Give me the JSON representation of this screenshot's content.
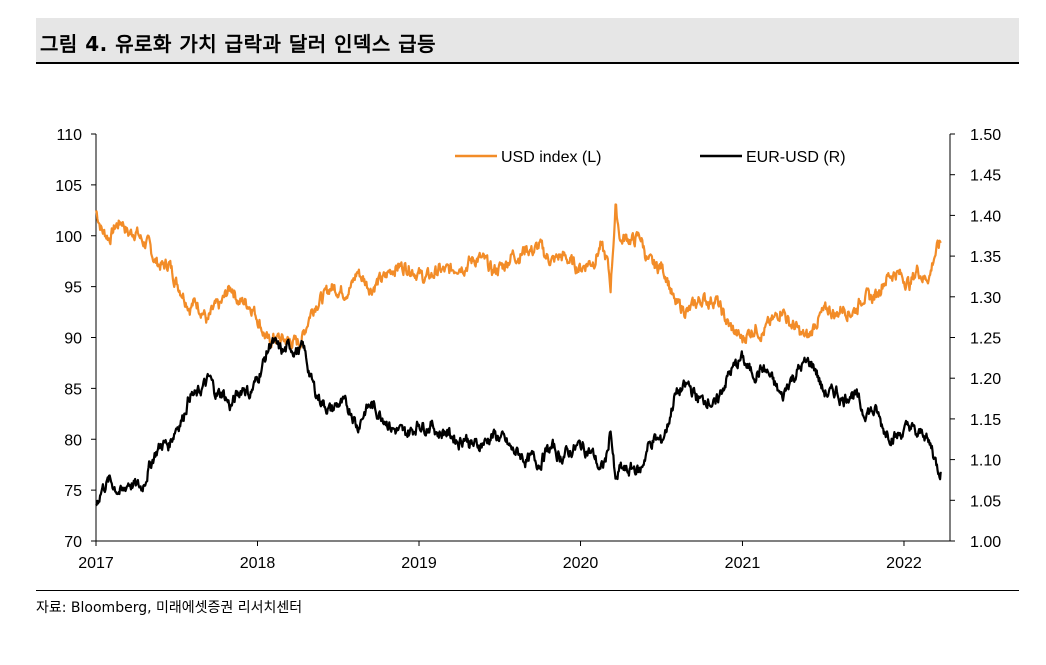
{
  "header": {
    "title": "그림 4. 유로화 가치 급락과 달러 인덱스 급등"
  },
  "footer": {
    "source": "자료: Bloomberg, 미래에셋증권 리서치센터"
  },
  "colors": {
    "usd": "#f28c28",
    "eur": "#000000"
  },
  "chart_data": {
    "type": "line",
    "title": "",
    "legend_position": "top",
    "grid": false,
    "x_ticks": [
      "2017",
      "2018",
      "2019",
      "2020",
      "2021",
      "2022"
    ],
    "xlim": [
      "2017-01-01",
      "2022-04-15"
    ],
    "y_left": {
      "label": "",
      "lim": [
        70,
        110
      ],
      "ticks": [
        "70",
        "75",
        "80",
        "85",
        "90",
        "95",
        "100",
        "105",
        "110"
      ]
    },
    "y_right": {
      "label": "",
      "lim": [
        1.0,
        1.5
      ],
      "ticks": [
        "1.00",
        "1.05",
        "1.10",
        "1.15",
        "1.20",
        "1.25",
        "1.30",
        "1.35",
        "1.40",
        "1.45",
        "1.50"
      ]
    },
    "series": [
      {
        "name": "USD index (L)",
        "axis": "left",
        "color": "#f28c28",
        "points": [
          [
            "2017-01-01",
            102.5
          ],
          [
            "2017-01-15",
            100.5
          ],
          [
            "2017-02-01",
            99.8
          ],
          [
            "2017-02-15",
            101.0
          ],
          [
            "2017-03-01",
            101.5
          ],
          [
            "2017-03-15",
            100.2
          ],
          [
            "2017-04-01",
            100.5
          ],
          [
            "2017-04-15",
            99.5
          ],
          [
            "2017-05-01",
            99.0
          ],
          [
            "2017-05-15",
            97.5
          ],
          [
            "2017-06-01",
            97.0
          ],
          [
            "2017-06-15",
            97.3
          ],
          [
            "2017-07-01",
            95.5
          ],
          [
            "2017-07-15",
            94.5
          ],
          [
            "2017-08-01",
            93.0
          ],
          [
            "2017-08-15",
            93.5
          ],
          [
            "2017-09-01",
            92.5
          ],
          [
            "2017-09-10",
            91.5
          ],
          [
            "2017-09-25",
            92.8
          ],
          [
            "2017-10-10",
            93.2
          ],
          [
            "2017-10-25",
            94.5
          ],
          [
            "2017-11-05",
            95.0
          ],
          [
            "2017-11-20",
            93.5
          ],
          [
            "2017-12-05",
            93.5
          ],
          [
            "2017-12-20",
            93.0
          ],
          [
            "2018-01-01",
            92.0
          ],
          [
            "2018-01-10",
            91.0
          ],
          [
            "2018-01-25",
            89.5
          ],
          [
            "2018-02-10",
            90.0
          ],
          [
            "2018-02-25",
            89.8
          ],
          [
            "2018-03-10",
            89.7
          ],
          [
            "2018-03-25",
            89.5
          ],
          [
            "2018-04-10",
            89.7
          ],
          [
            "2018-04-20",
            91.0
          ],
          [
            "2018-05-01",
            92.5
          ],
          [
            "2018-05-15",
            93.5
          ],
          [
            "2018-06-01",
            94.0
          ],
          [
            "2018-06-15",
            95.0
          ],
          [
            "2018-07-01",
            94.8
          ],
          [
            "2018-07-15",
            94.5
          ],
          [
            "2018-08-01",
            95.0
          ],
          [
            "2018-08-15",
            96.5
          ],
          [
            "2018-09-01",
            95.5
          ],
          [
            "2018-09-15",
            94.8
          ],
          [
            "2018-10-01",
            95.5
          ],
          [
            "2018-10-15",
            95.8
          ],
          [
            "2018-11-01",
            96.8
          ],
          [
            "2018-11-15",
            97.0
          ],
          [
            "2018-12-01",
            97.0
          ],
          [
            "2018-12-15",
            96.8
          ],
          [
            "2019-01-01",
            96.2
          ],
          [
            "2019-01-15",
            95.8
          ],
          [
            "2019-02-01",
            96.2
          ],
          [
            "2019-02-15",
            96.6
          ],
          [
            "2019-03-01",
            96.5
          ],
          [
            "2019-03-15",
            96.6
          ],
          [
            "2019-04-01",
            97.2
          ],
          [
            "2019-04-15",
            97.0
          ],
          [
            "2019-05-01",
            97.6
          ],
          [
            "2019-05-15",
            97.8
          ],
          [
            "2019-06-01",
            97.4
          ],
          [
            "2019-06-15",
            96.5
          ],
          [
            "2019-07-01",
            96.8
          ],
          [
            "2019-07-15",
            97.2
          ],
          [
            "2019-08-01",
            98.2
          ],
          [
            "2019-08-15",
            98.0
          ],
          [
            "2019-09-01",
            98.8
          ],
          [
            "2019-09-15",
            98.5
          ],
          [
            "2019-10-01",
            99.0
          ],
          [
            "2019-10-15",
            98.0
          ],
          [
            "2019-11-01",
            97.5
          ],
          [
            "2019-11-15",
            98.0
          ],
          [
            "2019-12-01",
            97.8
          ],
          [
            "2019-12-15",
            97.2
          ],
          [
            "2020-01-01",
            96.8
          ],
          [
            "2020-01-15",
            97.3
          ],
          [
            "2020-02-01",
            97.6
          ],
          [
            "2020-02-15",
            99.0
          ],
          [
            "2020-03-01",
            97.5
          ],
          [
            "2020-03-09",
            95.0
          ],
          [
            "2020-03-20",
            102.8
          ],
          [
            "2020-04-01",
            99.5
          ],
          [
            "2020-04-15",
            99.8
          ],
          [
            "2020-05-01",
            99.5
          ],
          [
            "2020-05-15",
            100.0
          ],
          [
            "2020-06-01",
            97.5
          ],
          [
            "2020-06-15",
            97.0
          ],
          [
            "2020-07-01",
            97.0
          ],
          [
            "2020-07-15",
            96.0
          ],
          [
            "2020-08-01",
            93.2
          ],
          [
            "2020-08-15",
            93.0
          ],
          [
            "2020-09-01",
            92.5
          ],
          [
            "2020-09-15",
            93.2
          ],
          [
            "2020-10-01",
            93.8
          ],
          [
            "2020-10-15",
            93.6
          ],
          [
            "2020-11-01",
            93.8
          ],
          [
            "2020-11-15",
            92.5
          ],
          [
            "2020-12-01",
            91.2
          ],
          [
            "2020-12-15",
            90.5
          ],
          [
            "2021-01-01",
            89.8
          ],
          [
            "2021-01-15",
            90.5
          ],
          [
            "2021-02-01",
            91.0
          ],
          [
            "2021-02-15",
            90.4
          ],
          [
            "2021-03-01",
            91.2
          ],
          [
            "2021-03-15",
            91.8
          ],
          [
            "2021-04-01",
            93.0
          ],
          [
            "2021-04-15",
            91.5
          ],
          [
            "2021-05-01",
            91.0
          ],
          [
            "2021-05-15",
            90.2
          ],
          [
            "2021-06-01",
            90.0
          ],
          [
            "2021-06-15",
            91.5
          ],
          [
            "2021-07-01",
            92.3
          ],
          [
            "2021-07-15",
            92.8
          ],
          [
            "2021-08-01",
            92.2
          ],
          [
            "2021-08-15",
            93.0
          ],
          [
            "2021-09-01",
            92.5
          ],
          [
            "2021-09-15",
            92.8
          ],
          [
            "2021-10-01",
            94.2
          ],
          [
            "2021-10-15",
            93.8
          ],
          [
            "2021-11-01",
            94.2
          ],
          [
            "2021-11-15",
            95.5
          ],
          [
            "2021-12-01",
            96.2
          ],
          [
            "2021-12-15",
            96.4
          ],
          [
            "2022-01-01",
            95.8
          ],
          [
            "2022-01-15",
            95.2
          ],
          [
            "2022-02-01",
            96.8
          ],
          [
            "2022-02-15",
            95.8
          ],
          [
            "2022-03-01",
            96.2
          ],
          [
            "2022-03-10",
            98.0
          ],
          [
            "2022-03-18",
            98.8
          ],
          [
            "2022-03-25",
            99.3
          ]
        ]
      },
      {
        "name": "EUR-USD (R)",
        "axis": "right",
        "color": "#000000",
        "points": [
          [
            "2017-01-01",
            1.045
          ],
          [
            "2017-01-15",
            1.065
          ],
          [
            "2017-02-01",
            1.075
          ],
          [
            "2017-02-15",
            1.065
          ],
          [
            "2017-03-01",
            1.058
          ],
          [
            "2017-03-15",
            1.072
          ],
          [
            "2017-04-01",
            1.068
          ],
          [
            "2017-04-15",
            1.065
          ],
          [
            "2017-05-01",
            1.09
          ],
          [
            "2017-05-15",
            1.108
          ],
          [
            "2017-06-01",
            1.12
          ],
          [
            "2017-06-15",
            1.118
          ],
          [
            "2017-07-01",
            1.14
          ],
          [
            "2017-07-15",
            1.15
          ],
          [
            "2017-08-01",
            1.18
          ],
          [
            "2017-08-15",
            1.178
          ],
          [
            "2017-09-01",
            1.19
          ],
          [
            "2017-09-15",
            1.2
          ],
          [
            "2017-10-01",
            1.18
          ],
          [
            "2017-10-15",
            1.182
          ],
          [
            "2017-11-01",
            1.165
          ],
          [
            "2017-11-15",
            1.178
          ],
          [
            "2017-12-01",
            1.19
          ],
          [
            "2017-12-15",
            1.18
          ],
          [
            "2018-01-01",
            1.2
          ],
          [
            "2018-01-15",
            1.22
          ],
          [
            "2018-02-01",
            1.245
          ],
          [
            "2018-02-15",
            1.238
          ],
          [
            "2018-03-01",
            1.232
          ],
          [
            "2018-03-15",
            1.24
          ],
          [
            "2018-04-01",
            1.232
          ],
          [
            "2018-04-15",
            1.238
          ],
          [
            "2018-04-25",
            1.215
          ],
          [
            "2018-05-01",
            1.2
          ],
          [
            "2018-05-15",
            1.18
          ],
          [
            "2018-06-01",
            1.168
          ],
          [
            "2018-06-15",
            1.16
          ],
          [
            "2018-07-01",
            1.168
          ],
          [
            "2018-07-15",
            1.168
          ],
          [
            "2018-08-01",
            1.16
          ],
          [
            "2018-08-15",
            1.14
          ],
          [
            "2018-09-01",
            1.16
          ],
          [
            "2018-09-15",
            1.168
          ],
          [
            "2018-10-01",
            1.158
          ],
          [
            "2018-10-15",
            1.152
          ],
          [
            "2018-11-01",
            1.138
          ],
          [
            "2018-11-15",
            1.135
          ],
          [
            "2018-12-01",
            1.132
          ],
          [
            "2018-12-15",
            1.135
          ],
          [
            "2019-01-01",
            1.145
          ],
          [
            "2019-01-15",
            1.14
          ],
          [
            "2019-02-01",
            1.142
          ],
          [
            "2019-02-15",
            1.132
          ],
          [
            "2019-03-01",
            1.135
          ],
          [
            "2019-03-15",
            1.13
          ],
          [
            "2019-04-01",
            1.122
          ],
          [
            "2019-04-15",
            1.128
          ],
          [
            "2019-05-01",
            1.118
          ],
          [
            "2019-05-15",
            1.118
          ],
          [
            "2019-06-01",
            1.122
          ],
          [
            "2019-06-15",
            1.13
          ],
          [
            "2019-07-01",
            1.128
          ],
          [
            "2019-07-15",
            1.122
          ],
          [
            "2019-08-01",
            1.11
          ],
          [
            "2019-08-15",
            1.108
          ],
          [
            "2019-09-01",
            1.098
          ],
          [
            "2019-09-15",
            1.102
          ],
          [
            "2019-10-01",
            1.095
          ],
          [
            "2019-10-15",
            1.11
          ],
          [
            "2019-11-01",
            1.115
          ],
          [
            "2019-11-15",
            1.102
          ],
          [
            "2019-12-01",
            1.108
          ],
          [
            "2019-12-15",
            1.112
          ],
          [
            "2020-01-01",
            1.118
          ],
          [
            "2020-01-15",
            1.112
          ],
          [
            "2020-02-01",
            1.105
          ],
          [
            "2020-02-15",
            1.085
          ],
          [
            "2020-03-01",
            1.105
          ],
          [
            "2020-03-09",
            1.14
          ],
          [
            "2020-03-20",
            1.07
          ],
          [
            "2020-04-01",
            1.09
          ],
          [
            "2020-04-15",
            1.085
          ],
          [
            "2020-05-01",
            1.09
          ],
          [
            "2020-05-15",
            1.085
          ],
          [
            "2020-06-01",
            1.115
          ],
          [
            "2020-06-15",
            1.125
          ],
          [
            "2020-07-01",
            1.122
          ],
          [
            "2020-07-15",
            1.14
          ],
          [
            "2020-08-01",
            1.178
          ],
          [
            "2020-08-15",
            1.185
          ],
          [
            "2020-09-01",
            1.192
          ],
          [
            "2020-09-15",
            1.18
          ],
          [
            "2020-10-01",
            1.172
          ],
          [
            "2020-10-15",
            1.175
          ],
          [
            "2020-11-01",
            1.165
          ],
          [
            "2020-11-15",
            1.185
          ],
          [
            "2020-12-01",
            1.205
          ],
          [
            "2020-12-15",
            1.215
          ],
          [
            "2021-01-01",
            1.225
          ],
          [
            "2021-01-15",
            1.21
          ],
          [
            "2021-02-01",
            1.205
          ],
          [
            "2021-02-15",
            1.212
          ],
          [
            "2021-03-01",
            1.205
          ],
          [
            "2021-03-15",
            1.192
          ],
          [
            "2021-04-01",
            1.175
          ],
          [
            "2021-04-15",
            1.195
          ],
          [
            "2021-05-01",
            1.205
          ],
          [
            "2021-05-15",
            1.215
          ],
          [
            "2021-06-01",
            1.22
          ],
          [
            "2021-06-15",
            1.212
          ],
          [
            "2021-07-01",
            1.185
          ],
          [
            "2021-07-15",
            1.18
          ],
          [
            "2021-08-01",
            1.185
          ],
          [
            "2021-08-15",
            1.172
          ],
          [
            "2021-09-01",
            1.182
          ],
          [
            "2021-09-15",
            1.178
          ],
          [
            "2021-10-01",
            1.158
          ],
          [
            "2021-10-15",
            1.16
          ],
          [
            "2021-11-01",
            1.158
          ],
          [
            "2021-11-15",
            1.138
          ],
          [
            "2021-12-01",
            1.13
          ],
          [
            "2021-12-15",
            1.128
          ],
          [
            "2022-01-01",
            1.135
          ],
          [
            "2022-01-15",
            1.142
          ],
          [
            "2022-02-01",
            1.128
          ],
          [
            "2022-02-15",
            1.135
          ],
          [
            "2022-02-25",
            1.12
          ],
          [
            "2022-03-05",
            1.115
          ],
          [
            "2022-03-12",
            1.1
          ],
          [
            "2022-03-18",
            1.09
          ],
          [
            "2022-03-25",
            1.085
          ]
        ]
      }
    ]
  }
}
